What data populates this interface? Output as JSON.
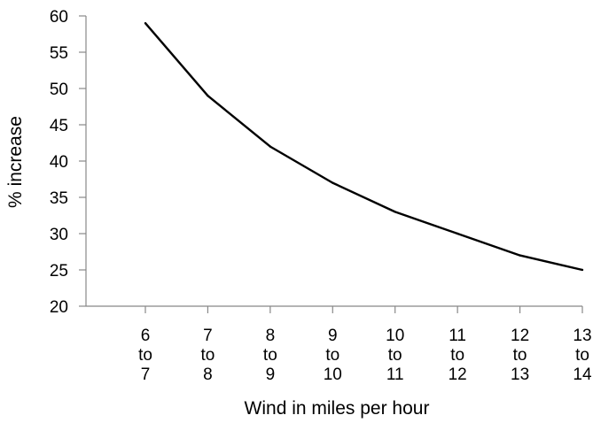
{
  "chart_data": {
    "type": "line",
    "title": "",
    "xlabel": "Wind in miles per hour",
    "ylabel": "% increase",
    "categories": [
      [
        "6",
        "to",
        "7"
      ],
      [
        "7",
        "to",
        "8"
      ],
      [
        "8",
        "to",
        "9"
      ],
      [
        "9",
        "to",
        "10"
      ],
      [
        "10",
        "to",
        "11"
      ],
      [
        "11",
        "to",
        "12"
      ],
      [
        "12",
        "to",
        "13"
      ],
      [
        "13",
        "to",
        "14"
      ]
    ],
    "values": [
      59,
      49,
      42,
      37,
      33,
      30,
      27,
      25
    ],
    "ylim": [
      20,
      60
    ],
    "yticks": [
      20,
      25,
      30,
      35,
      40,
      45,
      50,
      55,
      60
    ],
    "grid": false,
    "legend": "none",
    "colors": {
      "line": "#000000",
      "axis": "#888888"
    }
  }
}
